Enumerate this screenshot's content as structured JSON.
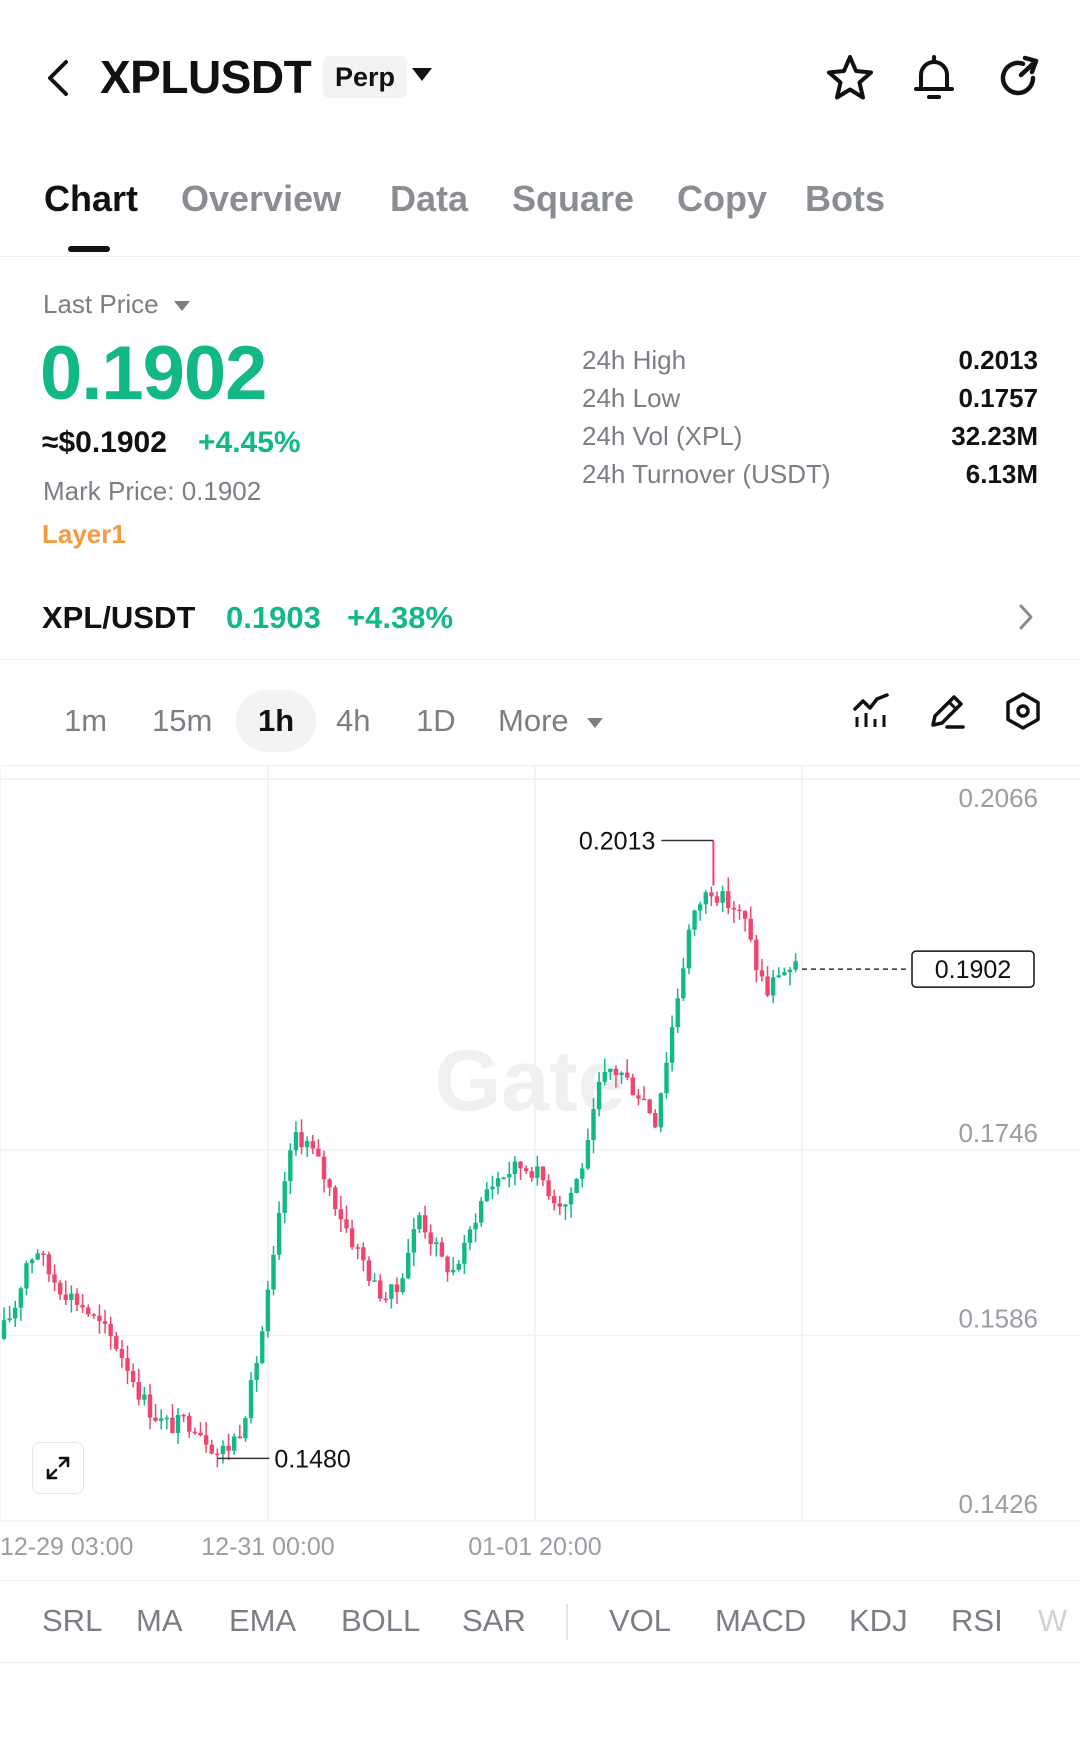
{
  "header": {
    "title": "XPLUSDT",
    "contract_type": "Perp",
    "icons": [
      "back-chevron-icon",
      "star-icon",
      "bell-icon",
      "share-refresh-icon"
    ]
  },
  "tabs": [
    {
      "label": "Chart",
      "active": true
    },
    {
      "label": "Overview"
    },
    {
      "label": "Data"
    },
    {
      "label": "Square"
    },
    {
      "label": "Copy"
    },
    {
      "label": "Bots"
    }
  ],
  "price": {
    "selector_label": "Last Price",
    "last": "0.1902",
    "usd_equiv": "≈$0.1902",
    "change": "+4.45%",
    "mark_label": "Mark Price:",
    "mark_value": "0.1902",
    "tag": "Layer1",
    "up_color": "#12b886",
    "down_color": "#f0466e",
    "tag_color": "#f59b3f"
  },
  "stats": [
    {
      "label": "24h  High",
      "value": "0.2013"
    },
    {
      "label": "24h  Low",
      "value": "0.1757"
    },
    {
      "label": "24h  Vol (XPL)",
      "value": "32.23M"
    },
    {
      "label": "24h  Turnover (USDT)",
      "value": "6.13M"
    }
  ],
  "spot": {
    "pair": "XPL/USDT",
    "price": "0.1903",
    "change": "+4.38%"
  },
  "timeframes": {
    "items": [
      "1m",
      "15m",
      "1h",
      "4h",
      "1D"
    ],
    "active": "1h",
    "more_label": "More"
  },
  "chart_tools": [
    "indicator-icon",
    "draw-pencil-icon",
    "settings-hex-icon"
  ],
  "chart_data": {
    "type": "candlestick",
    "interval": "1h",
    "ylim": [
      0.1426,
      0.2066
    ],
    "y_ticks": [
      "0.2066",
      "0.1746",
      "0.1586",
      "0.1426"
    ],
    "x_ticks": [
      "12-29 03:00",
      "12-31 00:00",
      "01-01 20:00"
    ],
    "current_price": "0.1902",
    "annotations": {
      "high": "0.2013",
      "low": "0.1480"
    },
    "watermark": "Gate",
    "close_path": [
      0.1593,
      0.1612,
      0.165,
      0.166,
      0.164,
      0.1628,
      0.162,
      0.1612,
      0.16,
      0.159,
      0.1578,
      0.156,
      0.1538,
      0.1522,
      0.1512,
      0.1508,
      0.1512,
      0.151,
      0.1498,
      0.1485,
      0.149,
      0.1505,
      0.154,
      0.159,
      0.165,
      0.172,
      0.176,
      0.1752,
      0.1735,
      0.1712,
      0.169,
      0.1668,
      0.165,
      0.1628,
      0.162,
      0.1625,
      0.166,
      0.169,
      0.167,
      0.165,
      0.1642,
      0.166,
      0.169,
      0.1712,
      0.1722,
      0.1728,
      0.1732,
      0.173,
      0.172,
      0.1705,
      0.17,
      0.172,
      0.1748,
      0.18,
      0.1815,
      0.1812,
      0.18,
      0.179,
      0.1772,
      0.1825,
      0.188,
      0.1935,
      0.196,
      0.1972,
      0.1962,
      0.1955,
      0.1942,
      0.1905,
      0.1882,
      0.19,
      0.1902
    ],
    "candle_color_up": "#12b886",
    "candle_color_down": "#f0466e"
  },
  "indicators": {
    "overlay": [
      "SRL",
      "MA",
      "EMA",
      "BOLL",
      "SAR"
    ],
    "sub": [
      "VOL",
      "MACD",
      "KDJ",
      "RSI",
      "W"
    ]
  }
}
